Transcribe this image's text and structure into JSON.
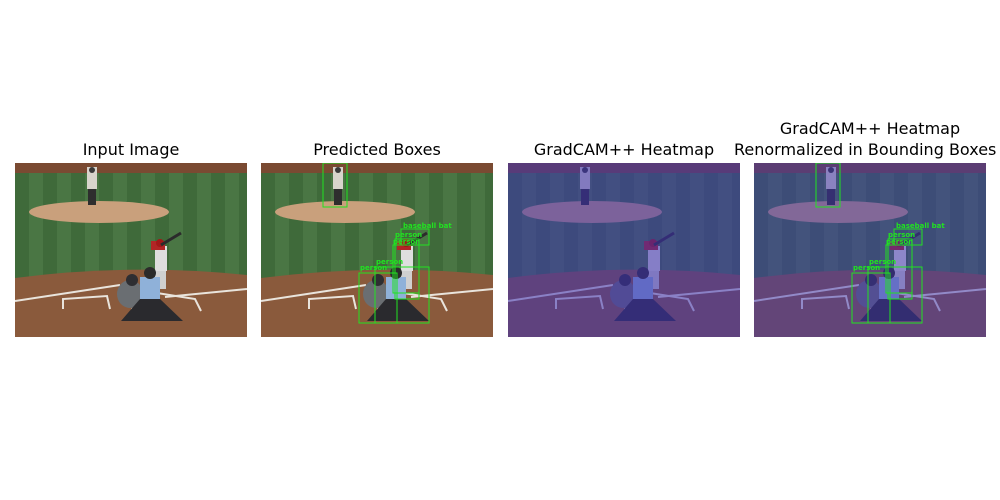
{
  "panels": [
    {
      "title": "Input Image"
    },
    {
      "title": "Predicted Boxes"
    },
    {
      "title": "GradCAM++ Heatmap"
    },
    {
      "title_line1": "GradCAM++ Heatmap",
      "title_line2": "Renormalized in Bounding Boxes"
    }
  ],
  "detection_labels": {
    "baseball_bat": "baseball bat",
    "person": "person"
  },
  "colors": {
    "box": "#21e221",
    "heatmap_tint": "#3c2fb4"
  }
}
